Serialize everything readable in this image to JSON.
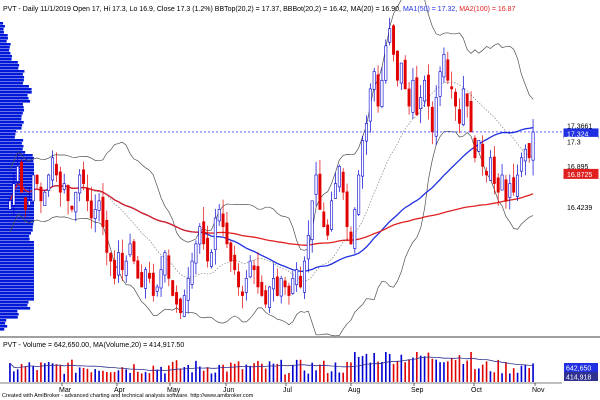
{
  "header": {
    "symbol": "PVT",
    "main_text": "PVT - Daily 11/1/2019 Open 17, Hi 17.3, Lo 16.9, Close 17.3 (1.2%) BBTop(20,2) = 17.37, BBBot(20,2) = 16.42, MA(20) = 16.90,",
    "ma50_text": "MA1(50) = 17.32,",
    "ma100_text": "MA2(100) = 16.87",
    "volume_text": "PVT - Volume = 642,650.00, MA(Volume,20) = 414,917.50"
  },
  "footer": {
    "credit": "Created with AmiBroker - advanced charting and technical analysis software. http://www.amibroker.com"
  },
  "colors": {
    "up": "#0000d0",
    "down": "#e00000",
    "ma50": "#2030e0",
    "ma100": "#e02020",
    "bollinger": "#505050",
    "ma20": "#707070",
    "volume_profile": "#0018d8",
    "price_line": "#0000ff"
  },
  "chart_data": [
    {
      "type": "candlestick",
      "title": "PVT - Daily",
      "x_months": [
        "Mar",
        "Apr",
        "May",
        "Jun",
        "Jul",
        "Aug",
        "Sep",
        "Oct",
        "Nov"
      ],
      "price_tags": [
        {
          "label": "17.3661",
          "value": 17.37,
          "color": "#ffffff",
          "bg": "#ffffff",
          "fg": "#000000"
        },
        {
          "label": "17.324",
          "value": 17.32,
          "bg": "#2030e0",
          "fg": "#ffffff"
        },
        {
          "label": "17.3",
          "value": 17.3,
          "bg": "#ffffff",
          "fg": "#000000"
        },
        {
          "label": "16.895",
          "value": 16.9,
          "bg": "#ffffff",
          "fg": "#000000"
        },
        {
          "label": "16.8725",
          "value": 16.87,
          "bg": "#e02020",
          "fg": "#ffffff"
        },
        {
          "label": "16.4239",
          "value": 16.42,
          "bg": "#ffffff",
          "fg": "#000000"
        }
      ],
      "y_range": [
        15.0,
        18.6
      ],
      "last": {
        "open": 17.0,
        "high": 17.3,
        "low": 16.9,
        "close": 17.3,
        "change_pct": 1.2
      },
      "bb_top": 17.37,
      "bb_bot": 16.42,
      "ma20": 16.9,
      "ma50": 17.32,
      "ma100": 16.87,
      "close_series": [
        16.5,
        16.7,
        16.9,
        16.6,
        16.4,
        16.5,
        16.8,
        16.7,
        16.5,
        16.6,
        16.8,
        17.0,
        16.8,
        16.6,
        16.7,
        16.5,
        16.4,
        16.6,
        16.8,
        16.7,
        16.5,
        16.3,
        16.4,
        16.5,
        16.2,
        15.9,
        15.8,
        15.6,
        15.9,
        15.7,
        15.8,
        16.0,
        15.8,
        15.6,
        15.5,
        15.7,
        15.6,
        15.4,
        15.5,
        15.7,
        15.9,
        15.6,
        15.4,
        15.3,
        15.2,
        15.4,
        15.6,
        15.8,
        16.0,
        16.2,
        16.0,
        15.8,
        15.9,
        16.3,
        16.4,
        16.2,
        16.0,
        15.8,
        15.7,
        15.5,
        15.4,
        15.6,
        15.8,
        15.7,
        15.5,
        15.4,
        15.3,
        15.5,
        15.6,
        15.4,
        15.6,
        15.5,
        15.4,
        15.6,
        15.7,
        15.5,
        15.8,
        16.1,
        16.5,
        16.8,
        16.4,
        16.2,
        16.1,
        16.5,
        16.7,
        16.9,
        16.6,
        16.2,
        16.0,
        16.4,
        16.8,
        17.2,
        17.4,
        17.8,
        18.0,
        17.6,
        17.9,
        18.3,
        18.5,
        18.2,
        17.9,
        18.1,
        17.8,
        17.6,
        17.9,
        17.5,
        17.7,
        17.9,
        17.6,
        17.3,
        17.7,
        18.0,
        18.2,
        17.9,
        17.8,
        17.6,
        17.4,
        17.8,
        17.6,
        17.3,
        17.0,
        17.2,
        16.9,
        16.8,
        17.0,
        16.7,
        16.6,
        16.8,
        16.5,
        16.7,
        16.6,
        16.8,
        17.0,
        17.1,
        17.0,
        17.3
      ],
      "volume_profile_note": "Horizontal volume-at-price histogram on left side"
    },
    {
      "type": "bar",
      "title": "PVT - Volume",
      "last_volume": 642650.0,
      "ma_volume20": 414917.5,
      "axis_tags": [
        "642,650",
        "414,918"
      ]
    }
  ]
}
